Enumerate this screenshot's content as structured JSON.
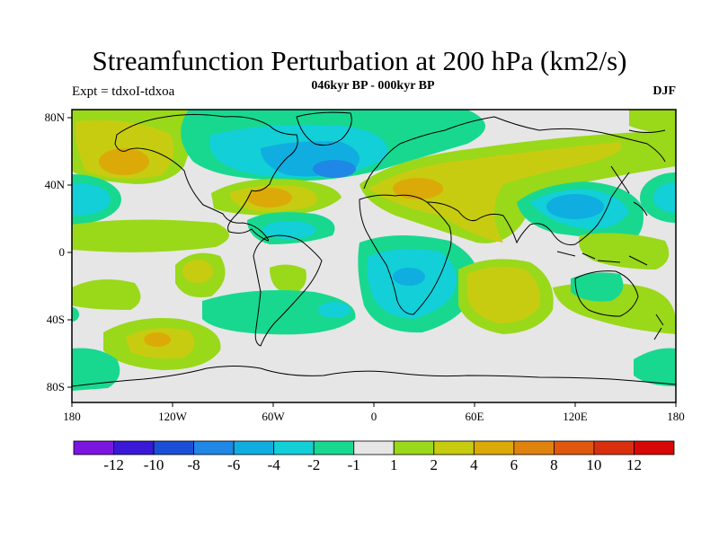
{
  "title": "Streamfunction Perturbation at 200 hPa (km2/s)",
  "subtitle": "046kyr BP - 000kyr BP",
  "left_label": "Expt = tdxoI-tdxoa",
  "right_label": "DJF",
  "axes": {
    "x_ticks": [
      "180",
      "120W",
      "60W",
      "0",
      "60E",
      "120E",
      "180"
    ],
    "y_ticks": [
      "80N",
      "40N",
      "0",
      "40S",
      "80S"
    ]
  },
  "colorbar": {
    "labels": [
      "-12",
      "-10",
      "-8",
      "-6",
      "-4",
      "-2",
      "-1",
      "1",
      "2",
      "4",
      "6",
      "8",
      "10",
      "12"
    ],
    "colors": [
      "#7b16e0",
      "#3a18d8",
      "#1b4fd8",
      "#1f87e6",
      "#10aee0",
      "#12cfd8",
      "#18d890",
      "#e6e6e6",
      "#9ad81a",
      "#c8cc10",
      "#dcaa08",
      "#e0820e",
      "#e0580e",
      "#d8300e",
      "#d80808"
    ]
  },
  "map_colors": {
    "neutral": "#e6e6e6",
    "pos_1_2": "#9ad81a",
    "pos_2_4": "#c8cc10",
    "pos_4_6": "#dcaa08",
    "neg_1_2": "#18d890",
    "neg_2_4": "#12cfd8",
    "neg_4_6": "#10aee0",
    "neg_6_8": "#1f87e6"
  }
}
